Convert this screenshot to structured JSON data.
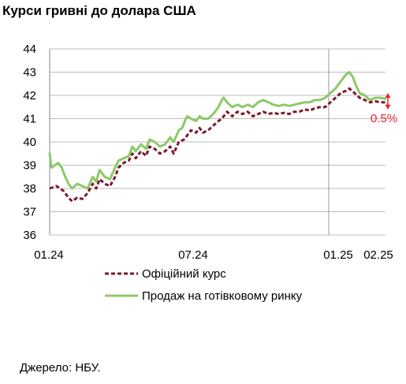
{
  "title": "Курси гривні до долара США",
  "source": "Джерело: НБУ.",
  "chart_data": {
    "type": "line",
    "title": "Курси гривні до долара США",
    "y_ticks": [
      "44",
      "43",
      "42",
      "41",
      "40",
      "39",
      "38",
      "37",
      "36"
    ],
    "ylim": [
      36,
      44
    ],
    "x_ticks": [
      "01.24",
      "07.24",
      "01.25",
      "02.25"
    ],
    "grid": "horizontal",
    "vertical_marker": "01.25",
    "annotation": "0.5%",
    "legend_position": "bottom",
    "series": [
      {
        "name": "Офіційний курс",
        "color": "#7b1a2e",
        "style": "dashed",
        "points": [
          [
            0,
            38.0
          ],
          [
            4,
            38.1
          ],
          [
            8,
            37.9
          ],
          [
            11,
            37.6
          ],
          [
            13,
            37.45
          ],
          [
            16,
            37.6
          ],
          [
            19,
            37.55
          ],
          [
            22,
            37.8
          ],
          [
            25,
            38.2
          ],
          [
            27,
            38.0
          ],
          [
            29,
            38.4
          ],
          [
            32,
            38.2
          ],
          [
            35,
            38.1
          ],
          [
            38,
            38.5
          ],
          [
            40,
            38.9
          ],
          [
            43,
            39.1
          ],
          [
            46,
            39.2
          ],
          [
            48,
            39.5
          ],
          [
            50,
            39.3
          ],
          [
            53,
            39.6
          ],
          [
            56,
            39.4
          ],
          [
            58,
            39.8
          ],
          [
            61,
            39.7
          ],
          [
            64,
            39.5
          ],
          [
            67,
            39.6
          ],
          [
            70,
            39.8
          ],
          [
            72,
            39.5
          ],
          [
            75,
            40.0
          ],
          [
            78,
            40.1
          ],
          [
            80,
            40.3
          ],
          [
            82,
            40.5
          ],
          [
            85,
            40.4
          ],
          [
            87,
            40.6
          ],
          [
            89,
            40.4
          ],
          [
            92,
            40.5
          ],
          [
            95,
            40.7
          ],
          [
            98,
            40.9
          ],
          [
            100,
            41.0
          ],
          [
            103,
            41.3
          ],
          [
            106,
            41.1
          ],
          [
            109,
            41.3
          ],
          [
            112,
            41.2
          ],
          [
            115,
            41.3
          ],
          [
            118,
            41.1
          ],
          [
            121,
            41.2
          ],
          [
            124,
            41.3
          ],
          [
            127,
            41.2
          ],
          [
            130,
            41.25
          ],
          [
            133,
            41.2
          ],
          [
            136,
            41.25
          ],
          [
            139,
            41.2
          ],
          [
            142,
            41.3
          ],
          [
            145,
            41.3
          ],
          [
            148,
            41.4
          ],
          [
            151,
            41.35
          ],
          [
            154,
            41.45
          ],
          [
            157,
            41.5
          ],
          [
            160,
            41.5
          ],
          [
            163,
            41.7
          ],
          [
            166,
            41.9
          ],
          [
            169,
            42.1
          ],
          [
            172,
            42.2
          ],
          [
            174,
            42.3
          ],
          [
            177,
            42.1
          ],
          [
            180,
            41.9
          ],
          [
            183,
            41.8
          ],
          [
            186,
            41.7
          ],
          [
            189,
            41.75
          ],
          [
            192,
            41.7
          ],
          [
            195,
            41.7
          ]
        ]
      },
      {
        "name": "Продаж на готівковому ринку",
        "color": "#8cc968",
        "style": "solid",
        "points": [
          [
            0,
            39.5
          ],
          [
            1,
            38.9
          ],
          [
            3,
            39.0
          ],
          [
            5,
            39.1
          ],
          [
            7,
            38.9
          ],
          [
            9,
            38.5
          ],
          [
            11,
            38.2
          ],
          [
            13,
            38.0
          ],
          [
            16,
            38.2
          ],
          [
            19,
            38.1
          ],
          [
            22,
            38.0
          ],
          [
            25,
            38.5
          ],
          [
            27,
            38.3
          ],
          [
            29,
            38.8
          ],
          [
            32,
            38.5
          ],
          [
            35,
            38.4
          ],
          [
            38,
            38.9
          ],
          [
            40,
            39.2
          ],
          [
            43,
            39.3
          ],
          [
            46,
            39.4
          ],
          [
            48,
            39.8
          ],
          [
            50,
            39.6
          ],
          [
            53,
            39.9
          ],
          [
            56,
            39.7
          ],
          [
            58,
            40.1
          ],
          [
            61,
            40.0
          ],
          [
            64,
            39.8
          ],
          [
            67,
            39.9
          ],
          [
            70,
            40.2
          ],
          [
            72,
            40.0
          ],
          [
            75,
            40.5
          ],
          [
            77,
            40.6
          ],
          [
            79,
            41.0
          ],
          [
            80,
            41.1
          ],
          [
            82,
            41.0
          ],
          [
            85,
            40.9
          ],
          [
            87,
            41.1
          ],
          [
            89,
            41.0
          ],
          [
            92,
            41.0
          ],
          [
            95,
            41.2
          ],
          [
            98,
            41.5
          ],
          [
            100,
            41.8
          ],
          [
            101,
            41.9
          ],
          [
            103,
            41.7
          ],
          [
            106,
            41.5
          ],
          [
            109,
            41.6
          ],
          [
            112,
            41.5
          ],
          [
            115,
            41.6
          ],
          [
            118,
            41.5
          ],
          [
            121,
            41.7
          ],
          [
            124,
            41.8
          ],
          [
            127,
            41.7
          ],
          [
            130,
            41.6
          ],
          [
            133,
            41.55
          ],
          [
            136,
            41.6
          ],
          [
            139,
            41.55
          ],
          [
            142,
            41.6
          ],
          [
            145,
            41.65
          ],
          [
            148,
            41.7
          ],
          [
            151,
            41.7
          ],
          [
            154,
            41.8
          ],
          [
            157,
            41.8
          ],
          [
            160,
            41.9
          ],
          [
            163,
            42.1
          ],
          [
            166,
            42.3
          ],
          [
            169,
            42.6
          ],
          [
            172,
            42.9
          ],
          [
            174,
            43.0
          ],
          [
            176,
            42.8
          ],
          [
            178,
            42.4
          ],
          [
            180,
            42.1
          ],
          [
            183,
            42.0
          ],
          [
            186,
            41.8
          ],
          [
            189,
            41.9
          ],
          [
            192,
            41.9
          ],
          [
            195,
            41.85
          ]
        ]
      }
    ]
  }
}
